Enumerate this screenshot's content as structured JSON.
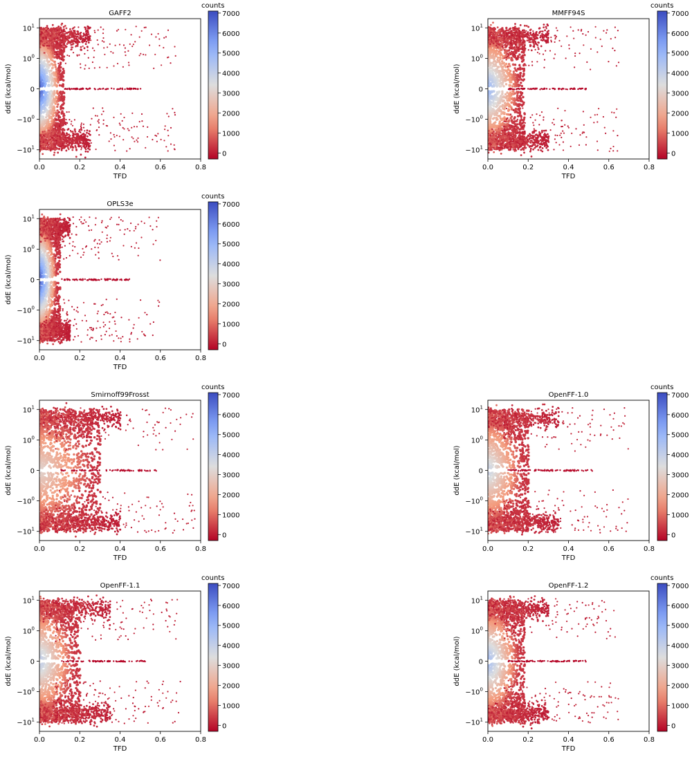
{
  "chart_data": [
    {
      "type": "scatter",
      "title": "GAFF2",
      "xlabel": "TFD",
      "ylabel": "ddE (kcal/mol)",
      "xlim": [
        0,
        0.8
      ],
      "ylim": [
        -20,
        20
      ],
      "yscale": "symlog",
      "xticks": [
        "0.0",
        "0.2",
        "0.4",
        "0.6",
        "0.8"
      ],
      "yticks": [
        {
          "value": 10,
          "label": "10^1"
        },
        {
          "value": 1,
          "label": "10^0"
        },
        {
          "value": 0,
          "label": "0"
        },
        {
          "value": -1,
          "label": "-10^0"
        },
        {
          "value": -10,
          "label": "-10^1"
        }
      ],
      "colorbar": {
        "label": "counts",
        "cmap": "coolwarm_r",
        "range": [
          -300,
          7100
        ],
        "ticks": [
          "0",
          "1000",
          "2000",
          "3000",
          "4000",
          "5000",
          "6000",
          "7000"
        ]
      },
      "density_shape": {
        "peak_counts": 7000,
        "core_tfd_max": 0.12,
        "band_tfd_max": 0.25,
        "tail_tfd_max": 0.68
      }
    },
    {
      "type": "scatter",
      "title": "MMFF94S",
      "xlabel": "TFD",
      "ylabel": "ddE (kcal/mol)",
      "xlim": [
        0,
        0.8
      ],
      "ylim": [
        -20,
        20
      ],
      "yscale": "symlog",
      "xticks": [
        "0.0",
        "0.2",
        "0.4",
        "0.6",
        "0.8"
      ],
      "yticks": [
        {
          "value": 10,
          "label": "10^1"
        },
        {
          "value": 1,
          "label": "10^0"
        },
        {
          "value": 0,
          "label": "0"
        },
        {
          "value": -1,
          "label": "-10^0"
        },
        {
          "value": -10,
          "label": "-10^1"
        }
      ],
      "colorbar": {
        "label": "counts",
        "cmap": "coolwarm_r",
        "range": [
          -300,
          7100
        ],
        "ticks": [
          "0",
          "1000",
          "2000",
          "3000",
          "4000",
          "5000",
          "6000",
          "7000"
        ]
      },
      "density_shape": {
        "peak_counts": 5000,
        "core_tfd_max": 0.18,
        "band_tfd_max": 0.3,
        "tail_tfd_max": 0.65
      }
    },
    {
      "type": "scatter",
      "title": "OPLS3e",
      "xlabel": "TFD",
      "ylabel": "ddE (kcal/mol)",
      "xlim": [
        0,
        0.8
      ],
      "ylim": [
        -20,
        20
      ],
      "yscale": "symlog",
      "xticks": [
        "0.0",
        "0.2",
        "0.4",
        "0.6",
        "0.8"
      ],
      "yticks": [
        {
          "value": 10,
          "label": "10^1"
        },
        {
          "value": 1,
          "label": "10^0"
        },
        {
          "value": 0,
          "label": "0"
        },
        {
          "value": -1,
          "label": "-10^0"
        },
        {
          "value": -10,
          "label": "-10^1"
        }
      ],
      "colorbar": {
        "label": "counts",
        "cmap": "coolwarm_r",
        "range": [
          -300,
          7100
        ],
        "ticks": [
          "0",
          "1000",
          "2000",
          "3000",
          "4000",
          "5000",
          "6000",
          "7000"
        ]
      },
      "density_shape": {
        "peak_counts": 7000,
        "core_tfd_max": 0.1,
        "band_tfd_max": 0.15,
        "tail_tfd_max": 0.6
      }
    },
    {
      "type": "scatter",
      "title": "Smirnoff99Frosst",
      "xlabel": "TFD",
      "ylabel": "ddE (kcal/mol)",
      "xlim": [
        0,
        0.8
      ],
      "ylim": [
        -20,
        20
      ],
      "yscale": "symlog",
      "xticks": [
        "0.0",
        "0.2",
        "0.4",
        "0.6",
        "0.8"
      ],
      "yticks": [
        {
          "value": 10,
          "label": "10^1"
        },
        {
          "value": 1,
          "label": "10^0"
        },
        {
          "value": 0,
          "label": "0"
        },
        {
          "value": -1,
          "label": "-10^0"
        },
        {
          "value": -10,
          "label": "-10^1"
        }
      ],
      "colorbar": {
        "label": "counts",
        "cmap": "coolwarm_r",
        "range": [
          -300,
          7100
        ],
        "ticks": [
          "0",
          "1000",
          "2000",
          "3000",
          "4000",
          "5000",
          "6000",
          "7000"
        ]
      },
      "density_shape": {
        "peak_counts": 3200,
        "core_tfd_max": 0.3,
        "band_tfd_max": 0.4,
        "tail_tfd_max": 0.78
      }
    },
    {
      "type": "scatter",
      "title": "OpenFF-1.0",
      "xlabel": "TFD",
      "ylabel": "ddE (kcal/mol)",
      "xlim": [
        0,
        0.8
      ],
      "ylim": [
        -20,
        20
      ],
      "yscale": "symlog",
      "xticks": [
        "0.0",
        "0.2",
        "0.4",
        "0.6",
        "0.8"
      ],
      "yticks": [
        {
          "value": 10,
          "label": "10^1"
        },
        {
          "value": 1,
          "label": "10^0"
        },
        {
          "value": 0,
          "label": "0"
        },
        {
          "value": -1,
          "label": "-10^0"
        },
        {
          "value": -10,
          "label": "-10^1"
        }
      ],
      "colorbar": {
        "label": "counts",
        "cmap": "coolwarm_r",
        "range": [
          -300,
          7100
        ],
        "ticks": [
          "0",
          "1000",
          "2000",
          "3000",
          "4000",
          "5000",
          "6000",
          "7000"
        ]
      },
      "density_shape": {
        "peak_counts": 4000,
        "core_tfd_max": 0.2,
        "band_tfd_max": 0.35,
        "tail_tfd_max": 0.7
      }
    },
    {
      "type": "scatter",
      "title": "OpenFF-1.1",
      "xlabel": "TFD",
      "ylabel": "ddE (kcal/mol)",
      "xlim": [
        0,
        0.8
      ],
      "ylim": [
        -20,
        20
      ],
      "yscale": "symlog",
      "xticks": [
        "0.0",
        "0.2",
        "0.4",
        "0.6",
        "0.8"
      ],
      "yticks": [
        {
          "value": 10,
          "label": "10^1"
        },
        {
          "value": 1,
          "label": "10^0"
        },
        {
          "value": 0,
          "label": "0"
        },
        {
          "value": -1,
          "label": "-10^0"
        },
        {
          "value": -10,
          "label": "-10^1"
        }
      ],
      "colorbar": {
        "label": "counts",
        "cmap": "coolwarm_r",
        "range": [
          -300,
          7100
        ],
        "ticks": [
          "0",
          "1000",
          "2000",
          "3000",
          "4000",
          "5000",
          "6000",
          "7000"
        ]
      },
      "density_shape": {
        "peak_counts": 4200,
        "core_tfd_max": 0.2,
        "band_tfd_max": 0.35,
        "tail_tfd_max": 0.7
      }
    },
    {
      "type": "scatter",
      "title": "OpenFF-1.2",
      "xlabel": "TFD",
      "ylabel": "ddE (kcal/mol)",
      "xlim": [
        0,
        0.8
      ],
      "ylim": [
        -20,
        20
      ],
      "yscale": "symlog",
      "xticks": [
        "0.0",
        "0.2",
        "0.4",
        "0.6",
        "0.8"
      ],
      "yticks": [
        {
          "value": 10,
          "label": "10^1"
        },
        {
          "value": 1,
          "label": "10^0"
        },
        {
          "value": 0,
          "label": "0"
        },
        {
          "value": -1,
          "label": "-10^0"
        },
        {
          "value": -10,
          "label": "-10^1"
        }
      ],
      "colorbar": {
        "label": "counts",
        "cmap": "coolwarm_r",
        "range": [
          -300,
          7100
        ],
        "ticks": [
          "0",
          "1000",
          "2000",
          "3000",
          "4000",
          "5000",
          "6000",
          "7000"
        ]
      },
      "density_shape": {
        "peak_counts": 4800,
        "core_tfd_max": 0.18,
        "band_tfd_max": 0.3,
        "tail_tfd_max": 0.65
      }
    }
  ]
}
